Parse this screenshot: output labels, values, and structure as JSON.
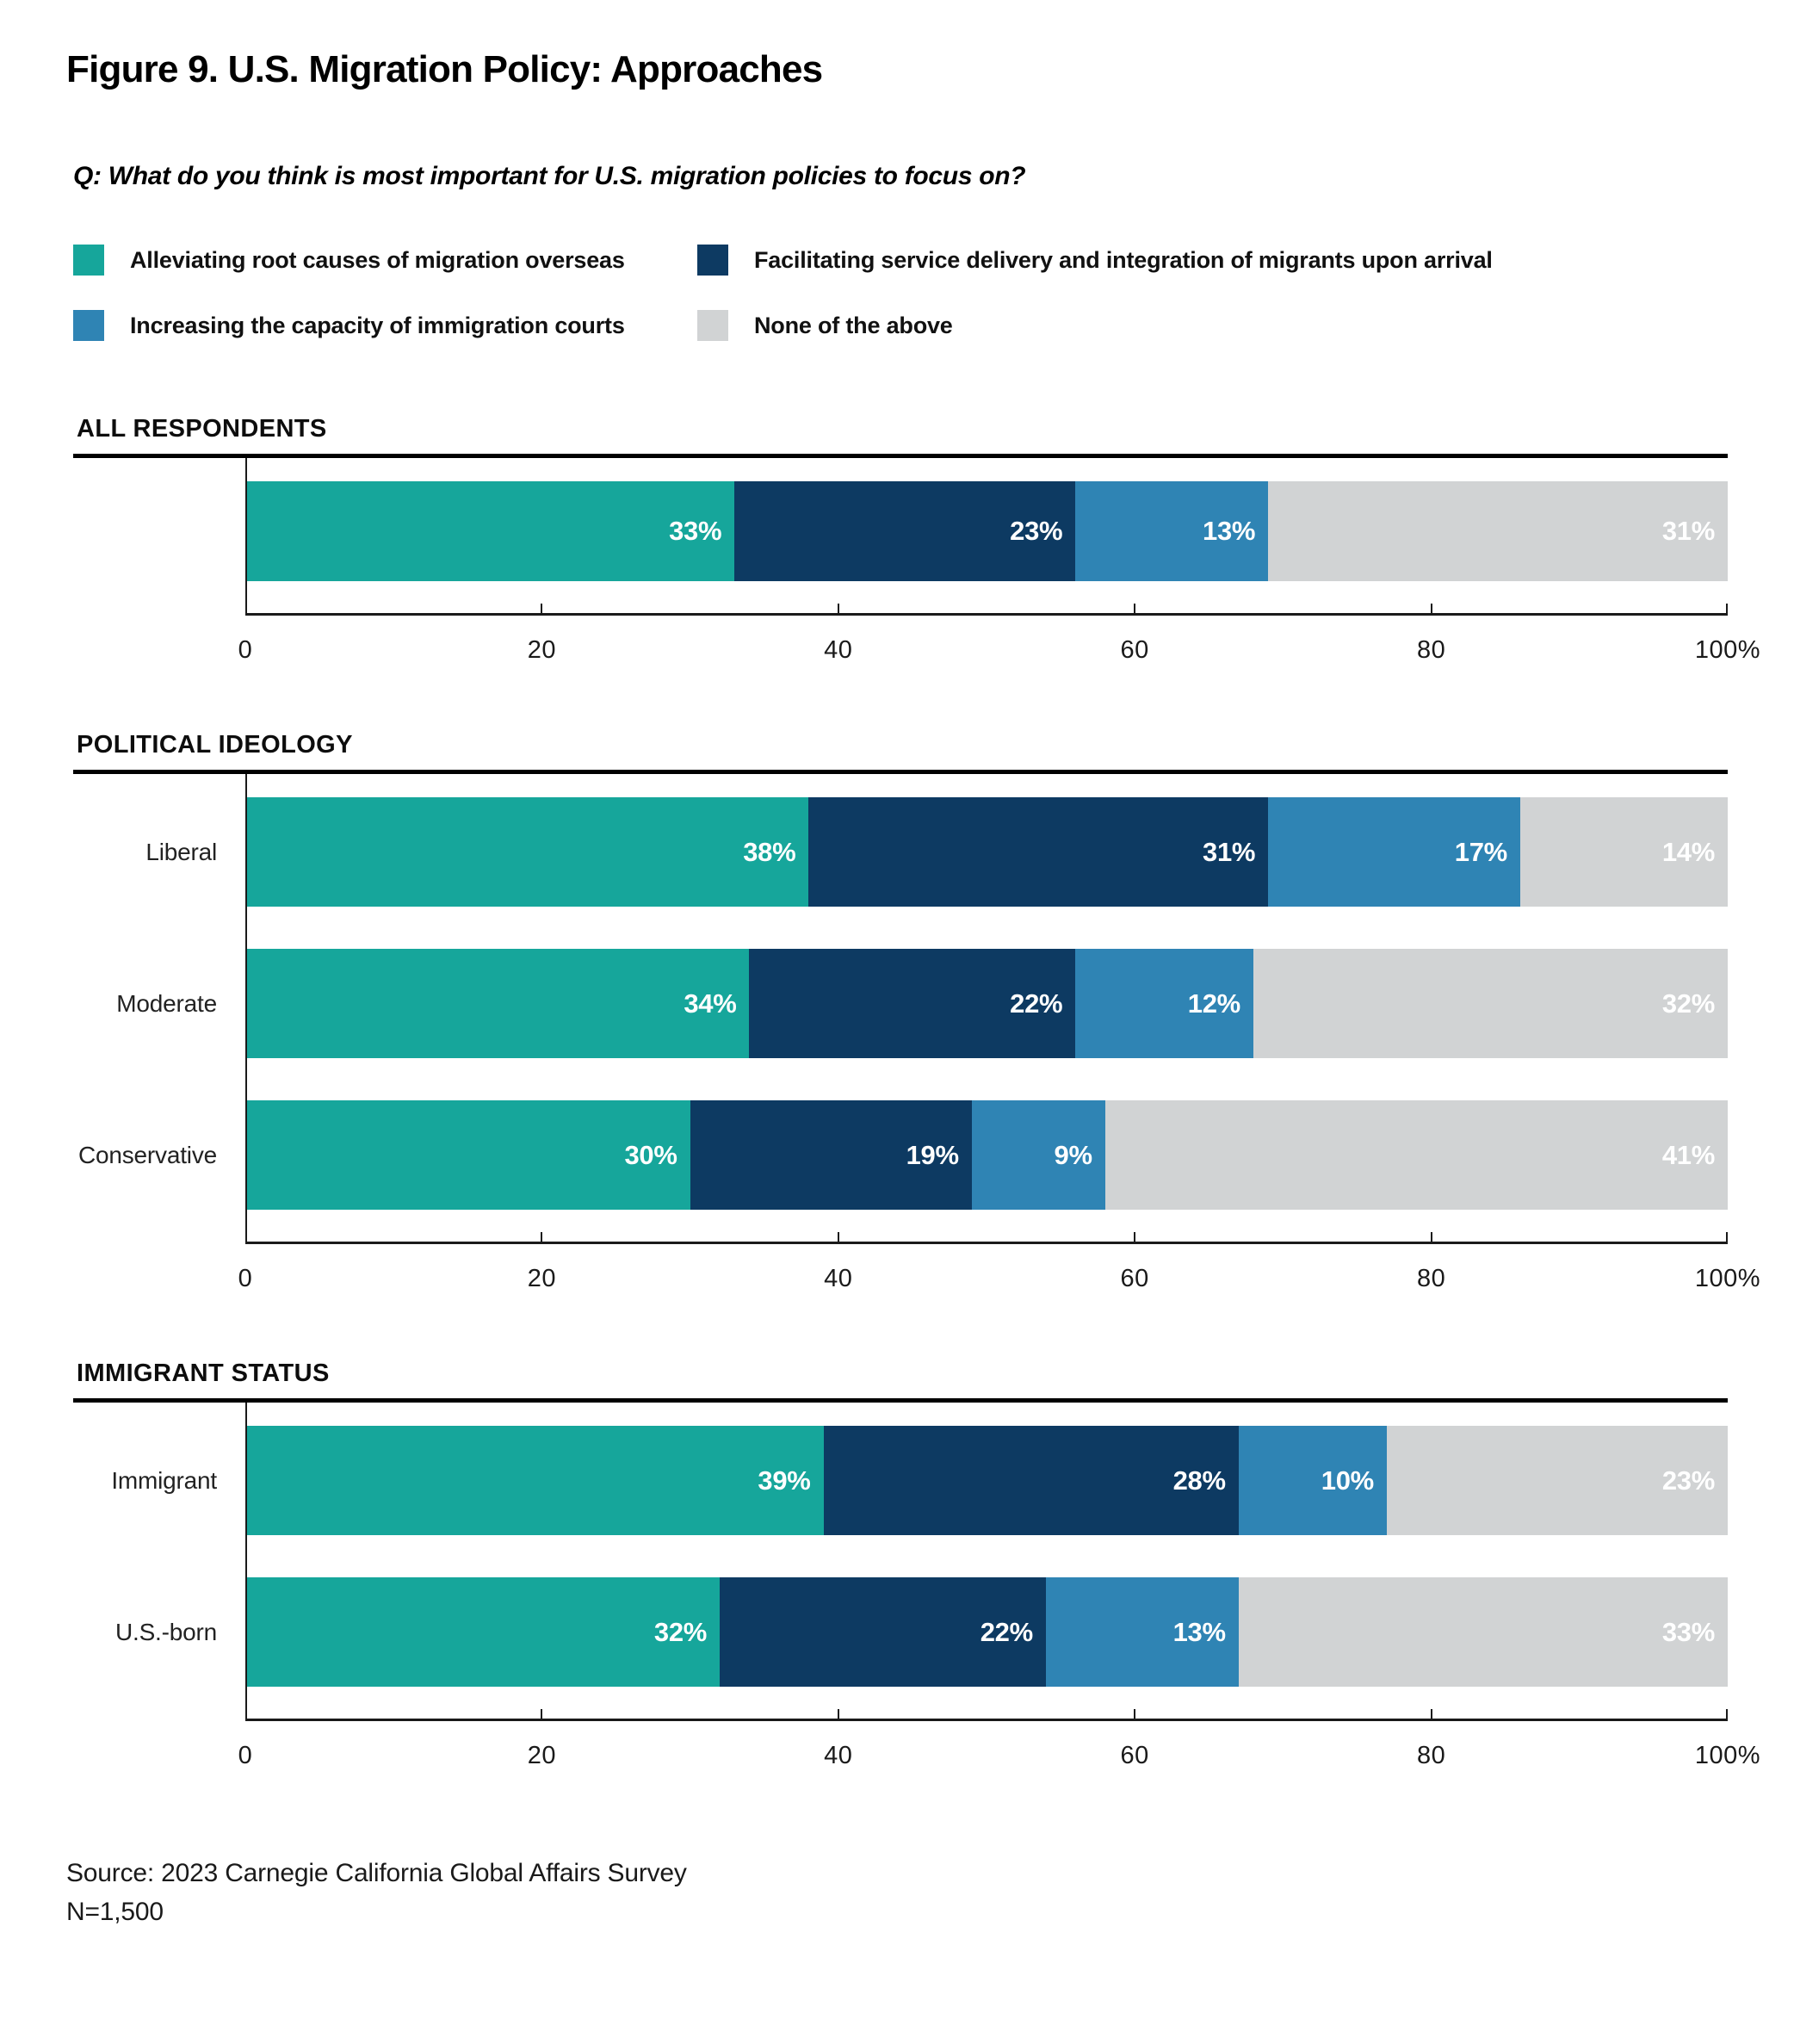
{
  "title": "Figure 9. U.S. Migration Policy: Approaches",
  "question": "Q: What do you think is most important for U.S. migration policies to focus on?",
  "legend": [
    {
      "key": "root-causes",
      "label": "Alleviating root causes of migration overseas",
      "color": "#16A69B"
    },
    {
      "key": "service-delivery",
      "label": "Facilitating service delivery and integration of migrants upon arrival",
      "color": "#0D3A62"
    },
    {
      "key": "immigration-courts",
      "label": "Increasing the capacity of immigration courts",
      "color": "#2F84B4"
    },
    {
      "key": "none-of-above",
      "label": "None of the above",
      "color": "#D1D3D4"
    }
  ],
  "chart_data": {
    "type": "bar",
    "orientation": "horizontal",
    "stacked": true,
    "unit": "%",
    "xlim": [
      0,
      100
    ],
    "x_ticks": [
      "0",
      "20",
      "40",
      "60",
      "80",
      "100%"
    ],
    "grid": false,
    "legend_position": "top",
    "series_names": [
      "Alleviating root causes of migration overseas",
      "Facilitating service delivery and integration of migrants upon arrival",
      "Increasing the capacity of immigration courts",
      "None of the above"
    ],
    "sections": [
      {
        "header": "ALL RESPONDENTS",
        "rows": [
          {
            "label": "",
            "values": [
              33,
              23,
              13,
              31
            ]
          }
        ]
      },
      {
        "header": "POLITICAL IDEOLOGY",
        "rows": [
          {
            "label": "Liberal",
            "values": [
              38,
              31,
              17,
              14
            ]
          },
          {
            "label": "Moderate",
            "values": [
              34,
              22,
              12,
              32
            ]
          },
          {
            "label": "Conservative",
            "values": [
              30,
              19,
              9,
              41
            ]
          }
        ]
      },
      {
        "header": "IMMIGRANT STATUS",
        "rows": [
          {
            "label": "Immigrant",
            "values": [
              39,
              28,
              10,
              23
            ]
          },
          {
            "label": "U.S.-born",
            "values": [
              32,
              22,
              13,
              33
            ]
          }
        ]
      }
    ]
  },
  "source": {
    "line1": "Source: 2023 Carnegie California Global Affairs Survey",
    "line2": "N=1,500"
  }
}
